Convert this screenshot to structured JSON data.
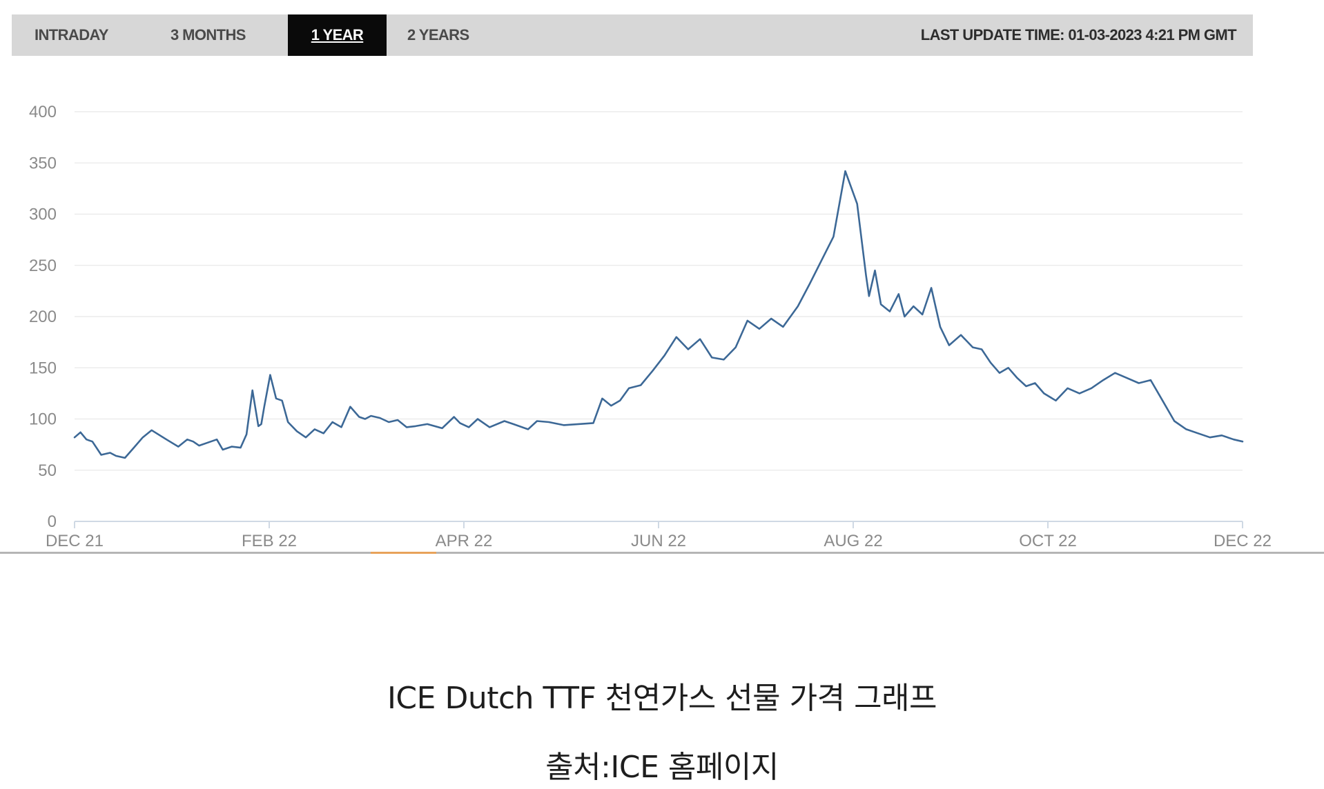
{
  "tabs": {
    "items": [
      "INTRADAY",
      "3 MONTHS",
      "1 YEAR",
      "2 YEARS"
    ],
    "active": "1 YEAR",
    "last_update": "LAST UPDATE TIME: 01-03-2023 4:21 PM GMT"
  },
  "chart_data": {
    "type": "line",
    "title": "",
    "xlabel": "",
    "ylabel": "",
    "ylim": [
      0,
      400
    ],
    "yticks": [
      0,
      50,
      100,
      150,
      200,
      250,
      300,
      350,
      400
    ],
    "xticks": [
      "DEC 21",
      "FEB 22",
      "APR 22",
      "JUN 22",
      "AUG 22",
      "OCT 22",
      "DEC 22"
    ],
    "grid": true,
    "color": "#3c6896",
    "series": [
      {
        "x": [
          "2021-12-01",
          "2021-12-03",
          "2021-12-05",
          "2021-12-07",
          "2021-12-10",
          "2021-12-13",
          "2021-12-15",
          "2021-12-18",
          "2021-12-21",
          "2021-12-24",
          "2021-12-27",
          "2022-01-01",
          "2022-01-05",
          "2022-01-08",
          "2022-01-10",
          "2022-01-12",
          "2022-01-15",
          "2022-01-18",
          "2022-01-20",
          "2022-01-23",
          "2022-01-26",
          "2022-01-28",
          "2022-01-30",
          "2022-02-01",
          "2022-02-02",
          "2022-02-03",
          "2022-02-05",
          "2022-02-07",
          "2022-02-09",
          "2022-02-11",
          "2022-02-14",
          "2022-02-17",
          "2022-02-20",
          "2022-02-23",
          "2022-02-26",
          "2022-03-01",
          "2022-03-04",
          "2022-03-07",
          "2022-03-09",
          "2022-03-11",
          "2022-03-14",
          "2022-03-17",
          "2022-03-20",
          "2022-03-23",
          "2022-03-26",
          "2022-03-30",
          "2022-04-04",
          "2022-04-08",
          "2022-04-10",
          "2022-04-13",
          "2022-04-16",
          "2022-04-20",
          "2022-04-25",
          "2022-04-28",
          "2022-05-03",
          "2022-05-06",
          "2022-05-10",
          "2022-05-15",
          "2022-05-20",
          "2022-05-25",
          "2022-05-28",
          "2022-05-31",
          "2022-06-03",
          "2022-06-06",
          "2022-06-10",
          "2022-06-14",
          "2022-06-18",
          "2022-06-22",
          "2022-06-26",
          "2022-06-30",
          "2022-07-04",
          "2022-07-08",
          "2022-07-12",
          "2022-07-16",
          "2022-07-20",
          "2022-07-24",
          "2022-07-28",
          "2022-08-02",
          "2022-08-06",
          "2022-08-10",
          "2022-08-14",
          "2022-08-18",
          "2022-08-22",
          "2022-08-25",
          "2022-08-26",
          "2022-08-28",
          "2022-08-30",
          "2022-09-02",
          "2022-09-05",
          "2022-09-07",
          "2022-09-10",
          "2022-09-13",
          "2022-09-16",
          "2022-09-19",
          "2022-09-22",
          "2022-09-26",
          "2022-09-30",
          "2022-10-03",
          "2022-10-06",
          "2022-10-09",
          "2022-10-12",
          "2022-10-15",
          "2022-10-18",
          "2022-10-21",
          "2022-10-24",
          "2022-10-28",
          "2022-11-01",
          "2022-11-05",
          "2022-11-09",
          "2022-11-13",
          "2022-11-17",
          "2022-11-21",
          "2022-11-25",
          "2022-11-29",
          "2022-12-03",
          "2022-12-07",
          "2022-12-11",
          "2022-12-15",
          "2022-12-19",
          "2022-12-23",
          "2022-12-27",
          "2022-12-30"
        ],
        "y": [
          82,
          87,
          80,
          78,
          65,
          67,
          64,
          62,
          72,
          82,
          89,
          80,
          73,
          80,
          78,
          74,
          77,
          80,
          70,
          73,
          72,
          85,
          128,
          93,
          95,
          112,
          143,
          120,
          118,
          97,
          88,
          82,
          90,
          86,
          97,
          92,
          112,
          102,
          100,
          103,
          101,
          97,
          99,
          92,
          93,
          95,
          91,
          102,
          96,
          92,
          100,
          92,
          98,
          95,
          90,
          98,
          97,
          94,
          95,
          96,
          120,
          113,
          118,
          130,
          133,
          147,
          162,
          180,
          168,
          178,
          160,
          158,
          170,
          196,
          188,
          198,
          190,
          210,
          232,
          255,
          278,
          342,
          310,
          240,
          220,
          245,
          212,
          205,
          222,
          200,
          210,
          202,
          228,
          190,
          172,
          182,
          170,
          168,
          155,
          145,
          150,
          140,
          132,
          135,
          125,
          118,
          130,
          125,
          130,
          138,
          145,
          140,
          135,
          138,
          118,
          98,
          90,
          86,
          82,
          84,
          80,
          78
        ]
      }
    ]
  },
  "caption": {
    "title": "ICE Dutch TTF 천연가스 선물 가격 그래프",
    "source": "출처:ICE 홈페이지"
  }
}
